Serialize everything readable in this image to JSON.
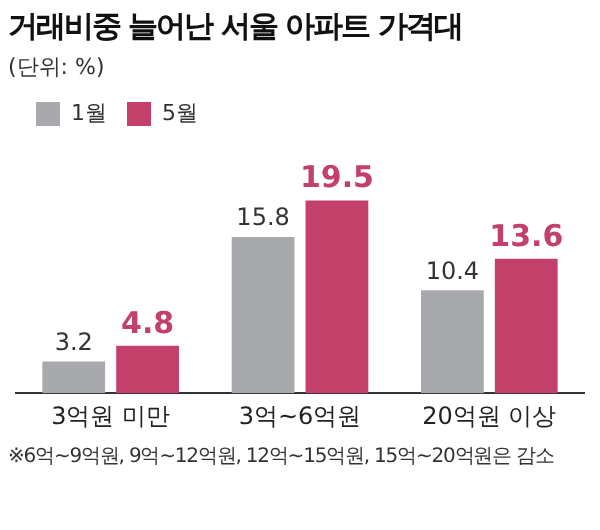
{
  "chart_data": {
    "type": "bar",
    "title": "거래비중 늘어난 서울 아파트 가격대",
    "subtitle": "(단위: %)",
    "categories": [
      "3억원 미만",
      "3억~6억원",
      "20억원 이상"
    ],
    "series": [
      {
        "name": "1월",
        "color": "#a7a9ac",
        "values": [
          3.2,
          15.8,
          10.4
        ]
      },
      {
        "name": "5월",
        "color": "#c2406a",
        "values": [
          4.8,
          19.5,
          13.6
        ]
      }
    ],
    "data_labels": true,
    "legend": "top left",
    "grid": false,
    "annotations": [
      "※6억~9억원, 9억~12억원, 12억~15억원, 15억~20억원은 감소"
    ]
  }
}
